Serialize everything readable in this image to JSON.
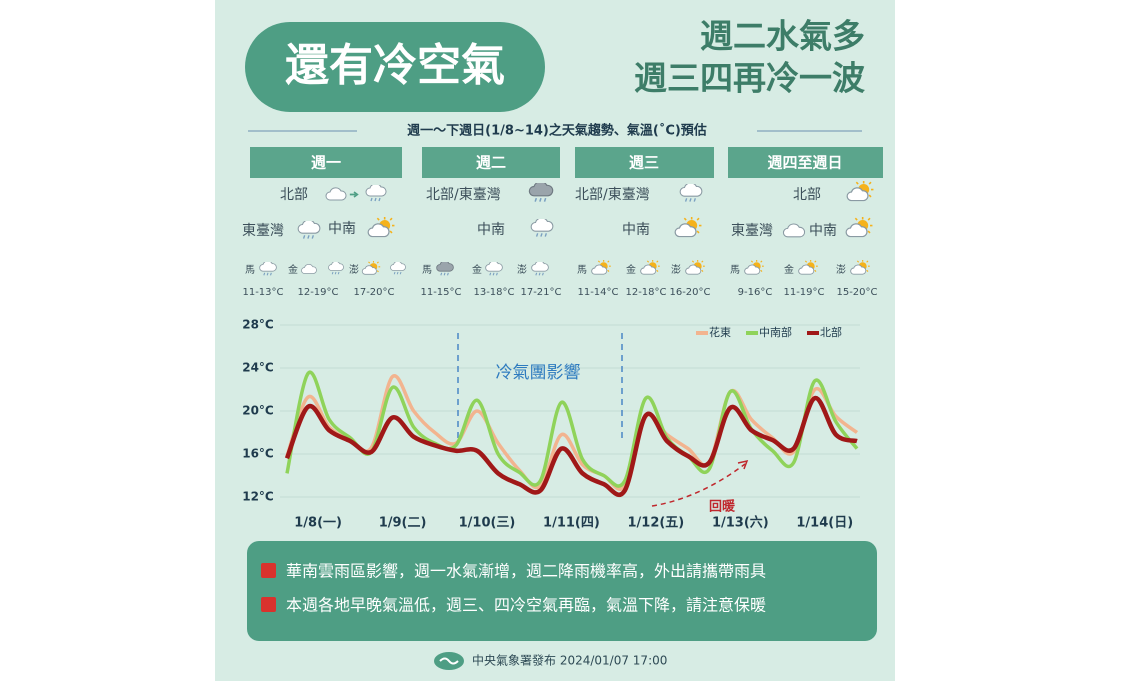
{
  "header": {
    "title": "還有冷空氣",
    "headline": [
      "週二水氣多",
      "週三四再冷一波"
    ],
    "subtitle": "週一～下週日(1/8~14)之天氣趨勢、氣溫(˚C)預估"
  },
  "forecast": [
    {
      "day": "週一",
      "regions": [
        "北部",
        "東臺灣",
        "中南"
      ],
      "islands": [
        "馬",
        "金",
        "澎"
      ],
      "temps": [
        "11-13°C",
        "12-19°C",
        "17-20°C"
      ]
    },
    {
      "day": "週二",
      "regions": [
        "北部/東臺灣",
        "中南"
      ],
      "islands": [
        "馬",
        "金",
        "澎"
      ],
      "temps": [
        "11-15°C",
        "13-18°C",
        "17-21°C"
      ]
    },
    {
      "day": "週三",
      "regions": [
        "北部/東臺灣",
        "中南"
      ],
      "islands": [
        "馬",
        "金",
        "澎"
      ],
      "temps": [
        "11-14°C",
        "12-18°C",
        "16-20°C"
      ]
    },
    {
      "day": "週四至週日",
      "regions": [
        "北部",
        "東臺灣",
        "中南"
      ],
      "islands": [
        "馬",
        "金",
        "澎"
      ],
      "temps": [
        "9-16°C",
        "11-19°C",
        "15-20°C"
      ]
    }
  ],
  "chart_data": {
    "type": "line",
    "categories": [
      null,
      "1/8(一)",
      null,
      null,
      null,
      "1/9(二)",
      null,
      null,
      null,
      "1/10(三)",
      null,
      null,
      null,
      "1/11(四)",
      null,
      null,
      null,
      "1/12(五)",
      null,
      null,
      null,
      "1/13(六)",
      null,
      null,
      null,
      "1/14(日)",
      null,
      null
    ],
    "series": [
      {
        "name": "花東",
        "color": "#f2b48f",
        "values": [
          15.8,
          21.3,
          18.5,
          17.3,
          16.6,
          23.2,
          20.0,
          18.0,
          17.0,
          20.0,
          17.0,
          14.5,
          13.0,
          17.8,
          15.0,
          14.0,
          13.0,
          19.5,
          17.8,
          16.5,
          15.2,
          21.8,
          19.2,
          17.5,
          16.2,
          22.0,
          19.5,
          18.0
        ]
      },
      {
        "name": "中南部",
        "color": "#8fd35a",
        "values": [
          14.2,
          23.5,
          19.2,
          17.5,
          16.2,
          22.2,
          18.5,
          17.0,
          16.8,
          21.0,
          16.0,
          14.3,
          13.5,
          20.8,
          15.5,
          14.0,
          13.5,
          21.2,
          17.5,
          15.8,
          14.6,
          21.8,
          18.3,
          16.3,
          15.2,
          22.8,
          19.0,
          16.5
        ]
      },
      {
        "name": "北部",
        "color": "#a01818",
        "values": [
          15.6,
          20.4,
          18.2,
          17.2,
          16.2,
          19.4,
          17.6,
          16.8,
          16.3,
          16.3,
          14.2,
          13.2,
          12.6,
          16.5,
          14.2,
          13.2,
          12.6,
          19.6,
          17.2,
          15.8,
          15.2,
          20.3,
          18.2,
          17.3,
          16.5,
          21.2,
          17.8,
          17.2
        ]
      }
    ],
    "ylim": [
      12,
      28
    ],
    "yticks": [
      {
        "value": 12,
        "label": "12°C"
      },
      {
        "value": 16,
        "label": "16°C"
      },
      {
        "value": 20,
        "label": "20°C"
      },
      {
        "value": 24,
        "label": "24°C"
      },
      {
        "value": 28,
        "label": "28°C"
      }
    ],
    "grid": true,
    "legend": "top-right",
    "annotations": [
      "冷氣團影響",
      "回暖"
    ]
  },
  "notes": [
    "華南雲雨區影響，週一水氣漸增，週二降雨機率高，外出請攜帶雨具",
    "本週各地早晚氣溫低，週三、四冷空氣再臨，氣溫下降，請注意保暖"
  ],
  "footer": "中央氣象署發布 2024/01/07 17:00"
}
